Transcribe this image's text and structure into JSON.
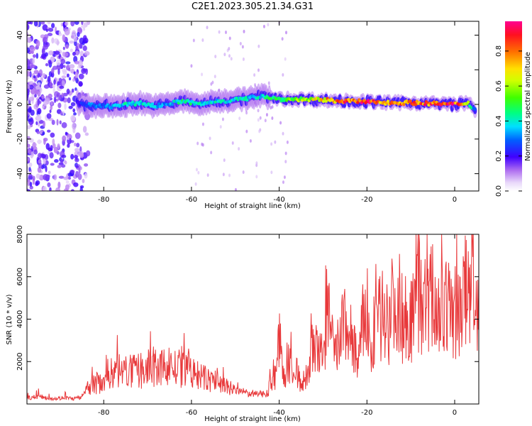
{
  "title": "C2E1.2023.305.21.34.G31",
  "chart_data": [
    {
      "type": "heatmap",
      "xlabel": "Height of straight line (km)",
      "ylabel": "Frequency (Hz)",
      "xlim": [
        -97.5,
        5.5
      ],
      "ylim": [
        -50,
        48
      ],
      "xticks": [
        -80,
        -60,
        -40,
        -20,
        0
      ],
      "yticks": [
        -40,
        -20,
        0,
        20,
        40
      ],
      "grid": false,
      "ridge": {
        "description_values": "Doppler ridge center frequency (Hz) vs height (km)",
        "x": [
          -86,
          -84,
          -82,
          -80,
          -78,
          -76,
          -74,
          -72,
          -70,
          -68,
          -66,
          -64,
          -62,
          -60,
          -58,
          -56,
          -54,
          -52,
          -50,
          -48,
          -46,
          -44,
          -42,
          -40,
          -35,
          -30,
          -25,
          -20,
          -15,
          -10,
          -5,
          0,
          3,
          4.5
        ],
        "y": [
          1,
          0,
          -1,
          -1,
          -1,
          -0.5,
          0,
          1,
          0,
          -1,
          0,
          1,
          2,
          1,
          0,
          1,
          2,
          2,
          3,
          3,
          4,
          5,
          4,
          3,
          3,
          2.5,
          2,
          1.5,
          1,
          1,
          0.5,
          0,
          1,
          -3
        ],
        "amplitude": [
          0.2,
          0.3,
          0.3,
          0.3,
          0.35,
          0.4,
          0.4,
          0.4,
          0.4,
          0.35,
          0.35,
          0.4,
          0.45,
          0.45,
          0.4,
          0.4,
          0.4,
          0.4,
          0.4,
          0.4,
          0.4,
          0.4,
          0.5,
          0.5,
          0.6,
          0.75,
          0.85,
          0.9,
          0.85,
          0.8,
          0.85,
          0.9,
          0.6,
          0.3
        ]
      }
    },
    {
      "type": "line",
      "xlabel": "Height of straight line (km)",
      "ylabel": "SNR (10 * v/v)",
      "xlim": [
        -97.5,
        5.5
      ],
      "ylim": [
        0,
        8000
      ],
      "xticks": [
        -80,
        -60,
        -40,
        -20,
        0
      ],
      "yticks": [
        2000,
        4000,
        6000,
        8000
      ],
      "grid": false,
      "color": "#e8383a",
      "series": [
        {
          "x": [
            -97,
            -95,
            -93,
            -91,
            -89,
            -87,
            -85,
            -83,
            -81,
            -79,
            -77,
            -75,
            -73,
            -71,
            -69,
            -67,
            -65,
            -63,
            -61,
            -59,
            -57,
            -55,
            -53,
            -51,
            -49,
            -47,
            -45,
            -43,
            -41,
            -40,
            -39,
            -38,
            -37,
            -36,
            -35,
            -34,
            -33,
            -32,
            -31,
            -30,
            -29,
            -28,
            -27,
            -26,
            -25,
            -24,
            -23,
            -22,
            -21,
            -20,
            -19,
            -18,
            -17,
            -16,
            -15,
            -14,
            -13,
            -12,
            -11,
            -10,
            -9,
            -8,
            -7,
            -6,
            -5,
            -4,
            -3,
            -2,
            -1,
            0,
            1,
            2,
            3,
            4,
            5
          ],
          "y": [
            300,
            350,
            300,
            250,
            300,
            250,
            300,
            900,
            1000,
            1400,
            1600,
            1500,
            1500,
            1600,
            1700,
            1600,
            1900,
            1500,
            1700,
            1300,
            1200,
            1100,
            950,
            700,
            600,
            500,
            450,
            500,
            1300,
            3000,
            1200,
            2100,
            1500,
            1700,
            700,
            1300,
            1800,
            2700,
            2200,
            2400,
            4500,
            3000,
            2200,
            3500,
            3800,
            3200,
            2900,
            1800,
            3600,
            4600,
            1800,
            4400,
            3900,
            4400,
            4000,
            4800,
            5000,
            4100,
            4500,
            3800,
            4800,
            5300,
            4500,
            4700,
            5200,
            4500,
            4600,
            4300,
            4800,
            4300,
            4400,
            5000,
            5400,
            6700,
            4500
          ]
        }
      ]
    }
  ],
  "colorbar": {
    "label": "Normalized spectral amplitude",
    "ticks": [
      "0.0",
      "0.2",
      "0.4",
      "0.6",
      "0.8"
    ],
    "tick_values": [
      0,
      0.2,
      0.4,
      0.6,
      0.8
    ],
    "range": [
      0,
      0.97
    ]
  }
}
